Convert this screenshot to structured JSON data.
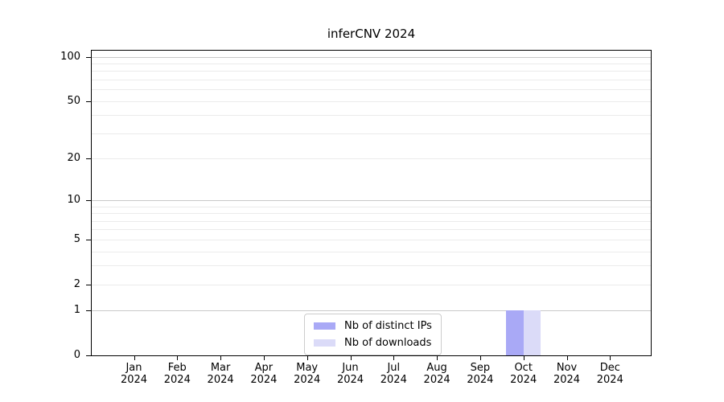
{
  "page": {
    "title": "inferCNV 2024"
  },
  "chart_data": {
    "type": "bar",
    "title": "inferCNV 2024",
    "categories": [
      "Jan",
      "Feb",
      "Mar",
      "Apr",
      "May",
      "Jun",
      "Jul",
      "Aug",
      "Sep",
      "Oct",
      "Nov",
      "Dec"
    ],
    "x_year": "2024",
    "series": [
      {
        "name": "Nb of distinct IPs",
        "color": "#a9a9f6",
        "values": [
          0,
          0,
          0,
          0,
          0,
          0,
          0,
          0,
          0,
          1,
          0,
          0
        ]
      },
      {
        "name": "Nb of downloads",
        "color": "#dbdbf8",
        "values": [
          0,
          0,
          0,
          0,
          0,
          0,
          0,
          0,
          0,
          1,
          0,
          0
        ]
      }
    ],
    "yscale": "log1p",
    "ylim": [
      0,
      110
    ],
    "ytick_values": [
      0,
      1,
      2,
      5,
      10,
      20,
      50,
      100
    ],
    "ytick_labels": [
      "0",
      "1",
      "2",
      "5",
      "10",
      "20",
      "50",
      "100"
    ],
    "grid_major_values": [
      1,
      10,
      100
    ],
    "grid_minor_values": [
      2,
      3,
      4,
      5,
      6,
      7,
      8,
      9,
      20,
      30,
      40,
      50,
      60,
      70,
      80,
      90
    ],
    "grid": true,
    "xlabel": "",
    "ylabel": "",
    "legend_position": "lower center"
  },
  "colors": {
    "background": "#ffffff",
    "spine": "#000000",
    "grid_major": "#c9c9c9",
    "grid_minor": "#ebebeb",
    "tick_label": "#000000",
    "legend_border": "#cccccc",
    "bar_distinct_ips": "#a9a9f6",
    "bar_downloads": "#dbdbf8"
  }
}
